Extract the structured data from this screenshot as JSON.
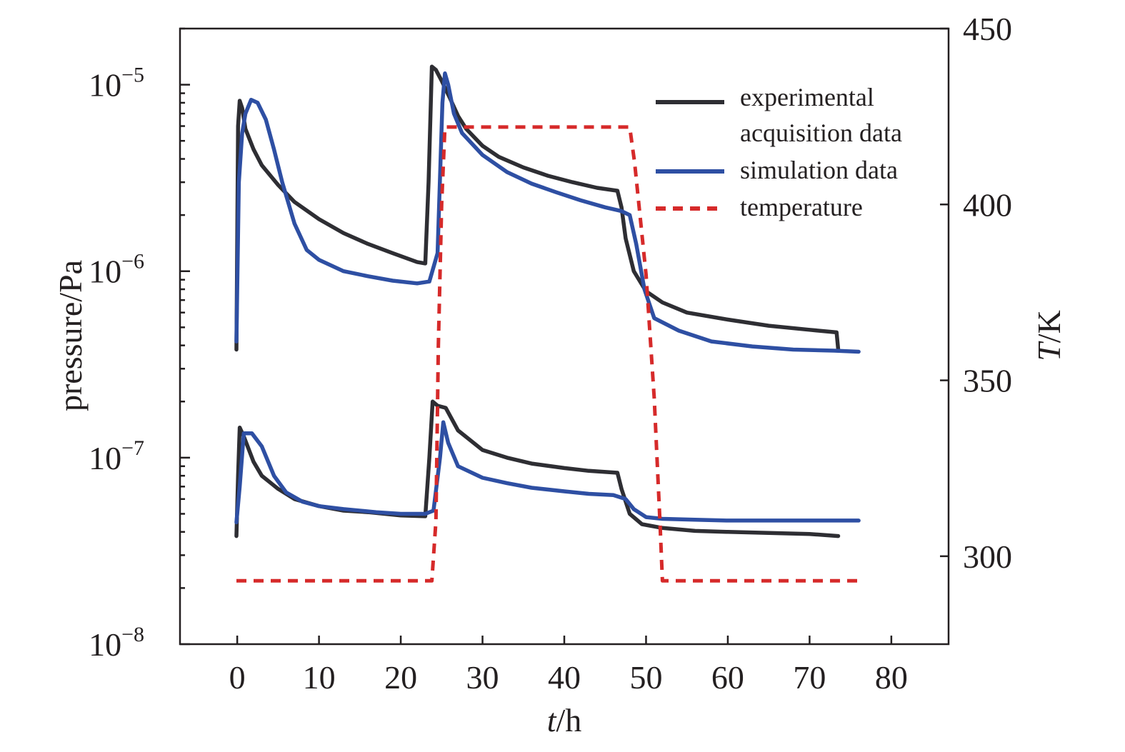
{
  "chart_data": {
    "type": "line",
    "xlabel": {
      "italic": "t",
      "rest": "/h"
    },
    "ylabel": "pressure/Pa",
    "y2label": {
      "italic": "T",
      "rest": "/K"
    },
    "xlim": [
      -7,
      87
    ],
    "xticks": [
      0,
      10,
      20,
      30,
      40,
      50,
      60,
      70,
      80
    ],
    "ylim": [
      1e-08,
      2e-05
    ],
    "yscale": "log",
    "yticks": [
      {
        "value": 1e-08,
        "base": "10",
        "exp": "−8"
      },
      {
        "value": 1e-07,
        "base": "10",
        "exp": "−7"
      },
      {
        "value": 1e-06,
        "base": "10",
        "exp": "−6"
      },
      {
        "value": 1e-05,
        "base": "10",
        "exp": "−5"
      }
    ],
    "y2lim": [
      275,
      450
    ],
    "y2ticks": [
      300,
      350,
      400,
      450
    ],
    "legend_position": "top-right",
    "grid": false,
    "series": [
      {
        "name": "experimental\nacquisition data",
        "axis": "left",
        "color": "#2e2e33",
        "style": "solid",
        "segments": [
          [
            [
              -0.1,
              3.8e-07
            ],
            [
              0.1,
              6e-06
            ],
            [
              0.3,
              8.2e-06
            ],
            [
              0.6,
              7.5e-06
            ],
            [
              1,
              5.8e-06
            ],
            [
              2,
              4.5e-06
            ],
            [
              3,
              3.7e-06
            ],
            [
              5,
              2.9e-06
            ],
            [
              7,
              2.35e-06
            ],
            [
              10,
              1.9e-06
            ],
            [
              13,
              1.6e-06
            ],
            [
              16,
              1.4e-06
            ],
            [
              19,
              1.25e-06
            ],
            [
              22,
              1.12e-06
            ],
            [
              23,
              1.1e-06
            ],
            [
              23.4,
              3e-06
            ],
            [
              23.8,
              1.25e-05
            ],
            [
              24.3,
              1.2e-05
            ],
            [
              25,
              1.05e-05
            ],
            [
              26,
              8.5e-06
            ],
            [
              27,
              6.8e-06
            ],
            [
              28,
              5.8e-06
            ],
            [
              30,
              4.7e-06
            ],
            [
              32,
              4.1e-06
            ],
            [
              35,
              3.6e-06
            ],
            [
              38,
              3.25e-06
            ],
            [
              41,
              3e-06
            ],
            [
              44,
              2.8e-06
            ],
            [
              46.5,
              2.7e-06
            ],
            [
              47,
              2.2e-06
            ],
            [
              47.5,
              1.5e-06
            ],
            [
              48.5,
              1e-06
            ],
            [
              50,
              7.8e-07
            ],
            [
              52,
              6.8e-07
            ],
            [
              55,
              6e-07
            ],
            [
              60,
              5.5e-07
            ],
            [
              65,
              5.1e-07
            ],
            [
              70,
              4.85e-07
            ],
            [
              73.3,
              4.7e-07
            ],
            [
              73.5,
              3.8e-07
            ]
          ],
          [
            [
              -0.1,
              3.8e-08
            ],
            [
              0.1,
              8e-08
            ],
            [
              0.3,
              1.45e-07
            ],
            [
              0.8,
              1.3e-07
            ],
            [
              2,
              9.5e-08
            ],
            [
              3,
              8e-08
            ],
            [
              5,
              6.8e-08
            ],
            [
              7,
              6e-08
            ],
            [
              10,
              5.5e-08
            ],
            [
              13,
              5.2e-08
            ],
            [
              16,
              5.1e-08
            ],
            [
              20,
              4.9e-08
            ],
            [
              23,
              4.85e-08
            ],
            [
              23.5,
              1e-07
            ],
            [
              23.9,
              2e-07
            ],
            [
              24.5,
              1.9e-07
            ],
            [
              25.5,
              1.85e-07
            ],
            [
              27,
              1.4e-07
            ],
            [
              30,
              1.1e-07
            ],
            [
              33,
              1e-07
            ],
            [
              36,
              9.3e-08
            ],
            [
              40,
              8.8e-08
            ],
            [
              43,
              8.5e-08
            ],
            [
              46.5,
              8.3e-08
            ],
            [
              47,
              6.8e-08
            ],
            [
              48,
              5e-08
            ],
            [
              49.5,
              4.4e-08
            ],
            [
              52,
              4.2e-08
            ],
            [
              56,
              4.05e-08
            ],
            [
              60,
              4e-08
            ],
            [
              65,
              3.95e-08
            ],
            [
              70,
              3.9e-08
            ],
            [
              73.5,
              3.8e-08
            ]
          ]
        ]
      },
      {
        "name": "simulation data",
        "axis": "left",
        "color": "#2e4fa3",
        "style": "solid",
        "segments": [
          [
            [
              -0.1,
              4.2e-07
            ],
            [
              0.2,
              3e-06
            ],
            [
              0.6,
              5.5e-06
            ],
            [
              1,
              7e-06
            ],
            [
              1.7,
              8.3e-06
            ],
            [
              2.5,
              8e-06
            ],
            [
              3.5,
              6.5e-06
            ],
            [
              4.5,
              4.5e-06
            ],
            [
              5.5,
              3e-06
            ],
            [
              7,
              1.8e-06
            ],
            [
              8.5,
              1.3e-06
            ],
            [
              10,
              1.15e-06
            ],
            [
              13,
              1e-06
            ],
            [
              16,
              9.4e-07
            ],
            [
              19,
              8.9e-07
            ],
            [
              22,
              8.6e-07
            ],
            [
              23.5,
              8.8e-07
            ],
            [
              24.5,
              1.25e-06
            ],
            [
              25.1,
              8e-06
            ],
            [
              25.4,
              1.15e-05
            ],
            [
              25.8,
              1e-05
            ],
            [
              26.5,
              7e-06
            ],
            [
              27.5,
              5.5e-06
            ],
            [
              30,
              4.2e-06
            ],
            [
              33,
              3.4e-06
            ],
            [
              36,
              2.95e-06
            ],
            [
              39,
              2.65e-06
            ],
            [
              42,
              2.4e-06
            ],
            [
              45,
              2.2e-06
            ],
            [
              47,
              2.1e-06
            ],
            [
              48,
              2e-06
            ],
            [
              48.8,
              1.4e-06
            ],
            [
              49.8,
              8e-07
            ],
            [
              51,
              5.6e-07
            ],
            [
              54,
              4.8e-07
            ],
            [
              58,
              4.2e-07
            ],
            [
              63,
              3.95e-07
            ],
            [
              68,
              3.8e-07
            ],
            [
              73,
              3.75e-07
            ],
            [
              76,
              3.7e-07
            ]
          ],
          [
            [
              -0.1,
              4.5e-08
            ],
            [
              0.3,
              7e-08
            ],
            [
              0.8,
              1.35e-07
            ],
            [
              1.8,
              1.35e-07
            ],
            [
              3,
              1.15e-07
            ],
            [
              4.5,
              8e-08
            ],
            [
              6,
              6.5e-08
            ],
            [
              8,
              5.8e-08
            ],
            [
              10,
              5.5e-08
            ],
            [
              13,
              5.3e-08
            ],
            [
              17,
              5.1e-08
            ],
            [
              20,
              5e-08
            ],
            [
              23,
              5e-08
            ],
            [
              24,
              5.2e-08
            ],
            [
              24.8,
              1e-07
            ],
            [
              25.2,
              1.55e-07
            ],
            [
              25.8,
              1.2e-07
            ],
            [
              27,
              9e-08
            ],
            [
              30,
              7.8e-08
            ],
            [
              33,
              7.3e-08
            ],
            [
              36,
              6.9e-08
            ],
            [
              40,
              6.6e-08
            ],
            [
              43,
              6.4e-08
            ],
            [
              46,
              6.3e-08
            ],
            [
              47.5,
              6e-08
            ],
            [
              48.5,
              5.3e-08
            ],
            [
              50,
              4.8e-08
            ],
            [
              52,
              4.7e-08
            ],
            [
              56,
              4.65e-08
            ],
            [
              60,
              4.6e-08
            ],
            [
              65,
              4.6e-08
            ],
            [
              70,
              4.6e-08
            ],
            [
              76,
              4.6e-08
            ]
          ]
        ]
      },
      {
        "name": "temperature",
        "axis": "right",
        "color": "#d62a2a",
        "style": "dashed",
        "segments": [
          [
            [
              -0.1,
              293
            ],
            [
              23.8,
              293
            ],
            [
              24.3,
              310
            ],
            [
              24.6,
              360
            ],
            [
              25,
              400
            ],
            [
              25.4,
              422
            ],
            [
              48,
              422
            ],
            [
              48.6,
              412
            ],
            [
              50,
              380
            ],
            [
              51,
              345
            ],
            [
              51.7,
              310
            ],
            [
              52,
              293
            ],
            [
              76,
              293
            ]
          ]
        ]
      }
    ]
  }
}
